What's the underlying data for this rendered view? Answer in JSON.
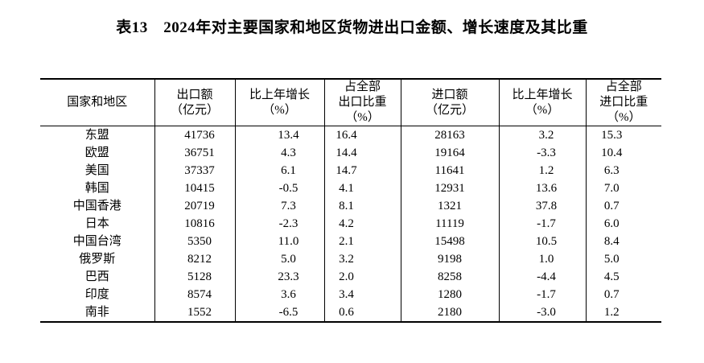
{
  "title": "表13　2024年对主要国家和地区货物进出口金额、增长速度及其比重",
  "table": {
    "headers": [
      {
        "lines": [
          "国家和地区"
        ]
      },
      {
        "lines": [
          "出口额",
          "（亿元）"
        ]
      },
      {
        "lines": [
          "比上年增长",
          "（%）"
        ]
      },
      {
        "lines": [
          "占全部",
          "出口比重",
          "（%）"
        ]
      },
      {
        "lines": [
          "进口额",
          "（亿元）"
        ]
      },
      {
        "lines": [
          "比上年增长",
          "（%）"
        ]
      },
      {
        "lines": [
          "占全部",
          "进口比重",
          "（%）"
        ]
      }
    ],
    "rows": [
      {
        "region": "东盟",
        "values": [
          "41736",
          "13.4",
          "16.4",
          "28163",
          "3.2",
          "15.3"
        ]
      },
      {
        "region": "欧盟",
        "values": [
          "36751",
          "4.3",
          "14.4",
          "19164",
          "-3.3",
          "10.4"
        ]
      },
      {
        "region": "美国",
        "values": [
          "37337",
          "6.1",
          "14.7",
          "11641",
          "1.2",
          "6.3"
        ]
      },
      {
        "region": "韩国",
        "values": [
          "10415",
          "-0.5",
          "4.1",
          "12931",
          "13.6",
          "7.0"
        ]
      },
      {
        "region": "中国香港",
        "values": [
          "20719",
          "7.3",
          "8.1",
          "1321",
          "37.8",
          "0.7"
        ]
      },
      {
        "region": "日本",
        "values": [
          "10816",
          "-2.3",
          "4.2",
          "11119",
          "-1.7",
          "6.0"
        ]
      },
      {
        "region": "中国台湾",
        "values": [
          "5350",
          "11.0",
          "2.1",
          "15498",
          "10.5",
          "8.4"
        ]
      },
      {
        "region": "俄罗斯",
        "values": [
          "8212",
          "5.0",
          "3.2",
          "9198",
          "1.0",
          "5.0"
        ]
      },
      {
        "region": "巴西",
        "values": [
          "5128",
          "23.3",
          "2.0",
          "8258",
          "-4.4",
          "4.5"
        ]
      },
      {
        "region": "印度",
        "values": [
          "8574",
          "3.6",
          "3.4",
          "1280",
          "-1.7",
          "0.7"
        ]
      },
      {
        "region": "南非",
        "values": [
          "1552",
          "-6.5",
          "0.6",
          "2180",
          "-3.0",
          "1.2"
        ]
      }
    ]
  },
  "colors": {
    "text": "#000000",
    "background": "#ffffff",
    "border": "#000000"
  }
}
